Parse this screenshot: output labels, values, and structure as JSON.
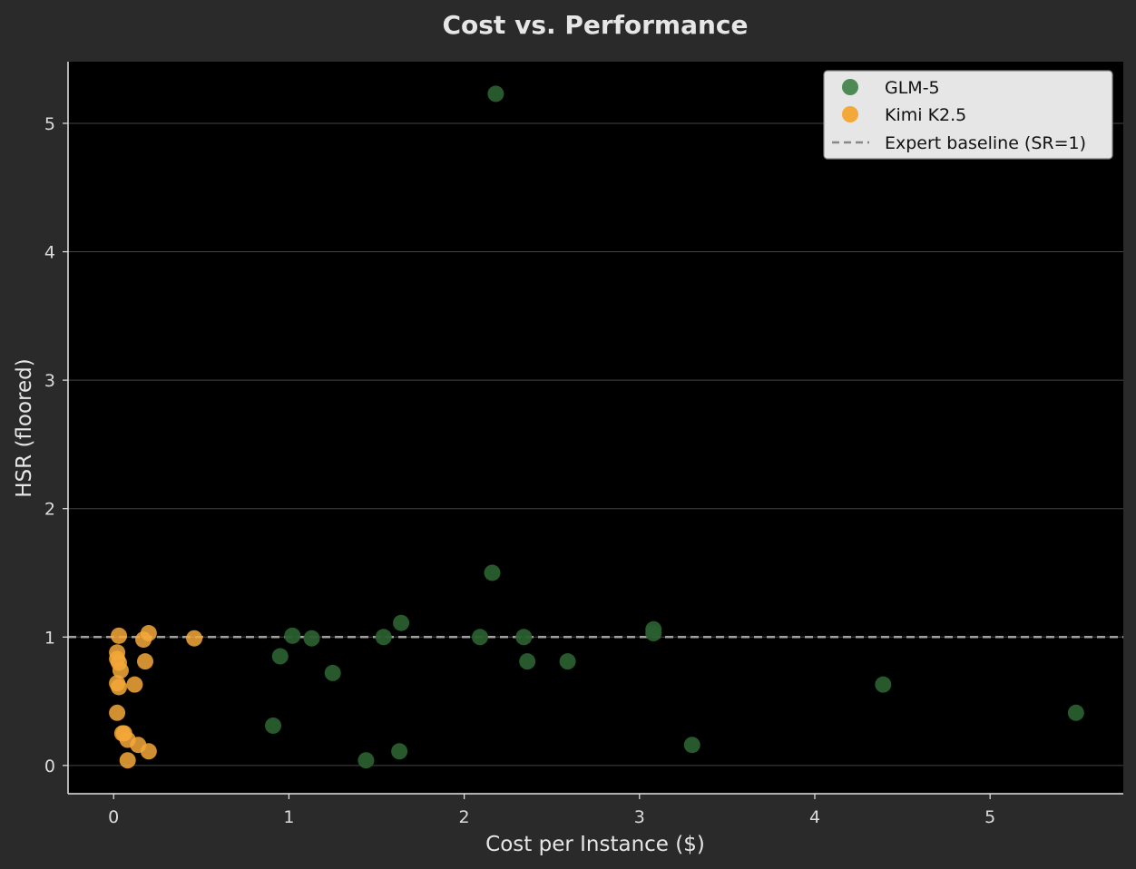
{
  "chart_data": {
    "type": "scatter",
    "title": "Cost vs. Performance",
    "xlabel": "Cost per Instance ($)",
    "ylabel": "HSR (floored)",
    "xlim": [
      -0.26,
      5.76
    ],
    "ylim": [
      -0.22,
      5.48
    ],
    "xticks": [
      0,
      1,
      2,
      3,
      4,
      5
    ],
    "yticks": [
      0,
      1,
      2,
      3,
      4,
      5
    ],
    "grid": "horizontal",
    "legend_position": "top-right",
    "series": [
      {
        "name": "GLM-5",
        "color": "#4e8a54",
        "points": [
          [
            2.18,
            5.23
          ],
          [
            2.16,
            1.5
          ],
          [
            1.64,
            1.11
          ],
          [
            1.02,
            1.01
          ],
          [
            1.13,
            0.99
          ],
          [
            1.54,
            1.0
          ],
          [
            2.09,
            1.0
          ],
          [
            2.34,
            1.0
          ],
          [
            3.08,
            1.06
          ],
          [
            3.08,
            1.03
          ],
          [
            0.95,
            0.85
          ],
          [
            2.36,
            0.81
          ],
          [
            2.59,
            0.81
          ],
          [
            1.25,
            0.72
          ],
          [
            4.39,
            0.63
          ],
          [
            5.49,
            0.41
          ],
          [
            0.91,
            0.31
          ],
          [
            3.3,
            0.16
          ],
          [
            1.63,
            0.11
          ],
          [
            1.44,
            0.04
          ]
        ]
      },
      {
        "name": "Kimi K2.5",
        "color": "#f5a83a",
        "points": [
          [
            0.03,
            1.01
          ],
          [
            0.2,
            1.03
          ],
          [
            0.17,
            0.98
          ],
          [
            0.46,
            0.99
          ],
          [
            0.02,
            0.88
          ],
          [
            0.02,
            0.83
          ],
          [
            0.03,
            0.8
          ],
          [
            0.18,
            0.81
          ],
          [
            0.04,
            0.74
          ],
          [
            0.02,
            0.64
          ],
          [
            0.12,
            0.63
          ],
          [
            0.03,
            0.61
          ],
          [
            0.02,
            0.41
          ],
          [
            0.05,
            0.25
          ],
          [
            0.06,
            0.25
          ],
          [
            0.08,
            0.2
          ],
          [
            0.14,
            0.16
          ],
          [
            0.2,
            0.11
          ],
          [
            0.08,
            0.04
          ]
        ]
      }
    ],
    "reference_line": {
      "name": "Expert baseline (SR=1)",
      "y": 1,
      "color": "#a0a0a0",
      "style": "dashed"
    }
  }
}
